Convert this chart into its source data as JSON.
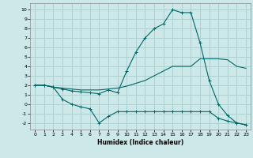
{
  "xlabel": "Humidex (Indice chaleur)",
  "background_color": "#cce8e8",
  "grid_color": "#aacccc",
  "line_color": "#006666",
  "xlim": [
    -0.5,
    23.5
  ],
  "ylim": [
    -2.7,
    10.7
  ],
  "xticks": [
    0,
    1,
    2,
    3,
    4,
    5,
    6,
    7,
    8,
    9,
    10,
    11,
    12,
    13,
    14,
    15,
    16,
    17,
    18,
    19,
    20,
    21,
    22,
    23
  ],
  "yticks": [
    -2,
    -1,
    0,
    1,
    2,
    3,
    4,
    5,
    6,
    7,
    8,
    9,
    10
  ],
  "line1_x": [
    0,
    1,
    2,
    3,
    4,
    5,
    6,
    7,
    8,
    9,
    10,
    11,
    12,
    13,
    14,
    15,
    16,
    17,
    18,
    19,
    20,
    21,
    22,
    23
  ],
  "line1_y": [
    2.0,
    2.0,
    1.8,
    1.7,
    1.6,
    1.5,
    1.5,
    1.5,
    1.6,
    1.7,
    1.9,
    2.2,
    2.5,
    3.0,
    3.5,
    4.0,
    4.0,
    4.0,
    4.8,
    4.8,
    4.8,
    4.7,
    4.0,
    3.8
  ],
  "line2_x": [
    0,
    1,
    2,
    3,
    4,
    5,
    6,
    7,
    8,
    9,
    10,
    11,
    12,
    13,
    14,
    15,
    16,
    17,
    18,
    19,
    20,
    21,
    22,
    23
  ],
  "line2_y": [
    2.0,
    2.0,
    1.8,
    0.5,
    0.0,
    -0.3,
    -0.5,
    -2.0,
    -1.3,
    -0.8,
    -0.8,
    -0.8,
    -0.8,
    -0.8,
    -0.8,
    -0.8,
    -0.8,
    -0.8,
    -0.8,
    -0.8,
    -1.5,
    -1.8,
    -2.0,
    -2.2
  ],
  "line3_x": [
    0,
    1,
    2,
    3,
    4,
    5,
    6,
    7,
    8,
    9,
    10,
    11,
    12,
    13,
    14,
    15,
    16,
    17,
    18,
    19,
    20,
    21,
    22,
    23
  ],
  "line3_y": [
    2.0,
    2.0,
    1.8,
    1.6,
    1.4,
    1.3,
    1.2,
    1.1,
    1.5,
    1.2,
    3.5,
    5.5,
    7.0,
    8.0,
    8.5,
    10.0,
    9.7,
    9.7,
    6.5,
    2.5,
    0.0,
    -1.2,
    -2.0,
    -2.2
  ]
}
